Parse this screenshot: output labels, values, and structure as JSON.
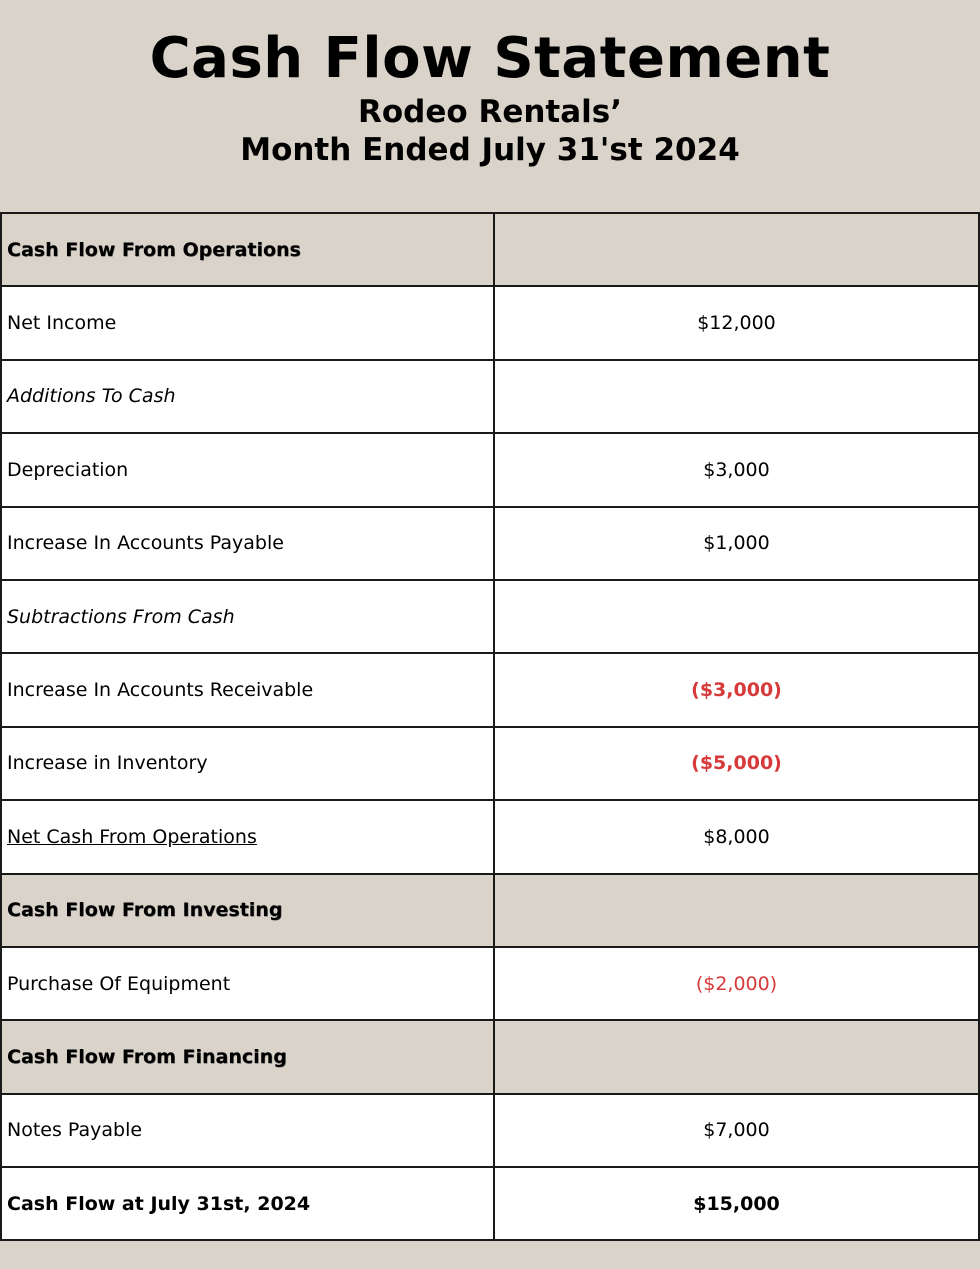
{
  "header": {
    "title": "Cash Flow Statement",
    "company": "Rodeo Rentals’",
    "period": "Month Ended July 31'st 2024"
  },
  "colors": {
    "header_bg": "#d9d3c9",
    "negative": "#d63a3a"
  },
  "rows": [
    {
      "label": "Cash Flow From Operations",
      "value": "",
      "type": "section"
    },
    {
      "label": "Net Income",
      "value": "$12,000",
      "type": "item"
    },
    {
      "label": "Additions To Cash",
      "value": "",
      "type": "subheading"
    },
    {
      "label": "Depreciation",
      "value": "$3,000",
      "type": "item"
    },
    {
      "label": "Increase In Accounts Payable",
      "value": "$1,000",
      "type": "item"
    },
    {
      "label": "Subtractions From Cash",
      "value": "",
      "type": "subheading"
    },
    {
      "label": "Increase In Accounts Receivable",
      "value": "($3,000)",
      "type": "negative"
    },
    {
      "label": "Increase in Inventory",
      "value": "($5,000)",
      "type": "negative"
    },
    {
      "label": "Net Cash From Operations",
      "value": "$8,000",
      "type": "subtotal"
    },
    {
      "label": "Cash Flow From Investing",
      "value": "",
      "type": "section"
    },
    {
      "label": "Purchase Of Equipment",
      "value": "($2,000)",
      "type": "negative"
    },
    {
      "label": "Cash Flow From Financing",
      "value": "",
      "type": "section"
    },
    {
      "label": "Notes Payable",
      "value": "$7,000",
      "type": "item"
    },
    {
      "label": "Cash Flow at July 31st, 2024",
      "value": "$15,000",
      "type": "total"
    }
  ]
}
